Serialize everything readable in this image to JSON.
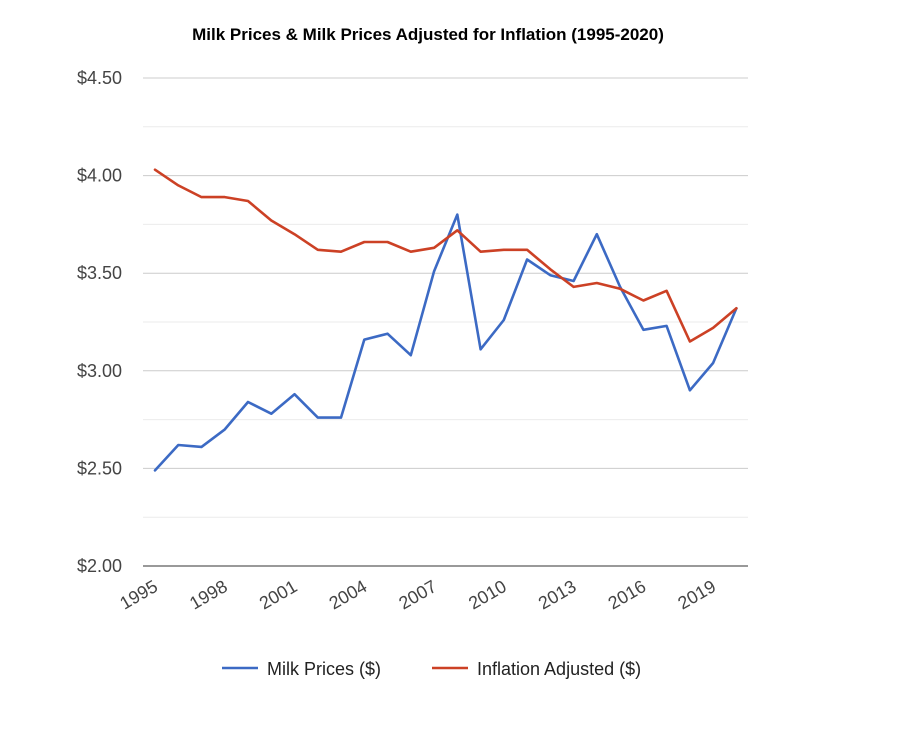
{
  "chart_data": {
    "type": "line",
    "title": "Milk Prices & Milk Prices Adjusted for Inflation (1995-2020)",
    "xlabel": "",
    "ylabel": "",
    "x": [
      1995,
      1996,
      1997,
      1998,
      1999,
      2000,
      2001,
      2002,
      2003,
      2004,
      2005,
      2006,
      2007,
      2008,
      2009,
      2010,
      2011,
      2012,
      2013,
      2014,
      2015,
      2016,
      2017,
      2018,
      2019,
      2020
    ],
    "x_tick_labels": [
      "1995",
      "1998",
      "2001",
      "2004",
      "2007",
      "2010",
      "2013",
      "2016",
      "2019"
    ],
    "x_tick_values": [
      1995,
      1998,
      2001,
      2004,
      2007,
      2010,
      2013,
      2016,
      2019
    ],
    "ylim": [
      2.0,
      4.5
    ],
    "y_tick_values": [
      2.0,
      2.5,
      3.0,
      3.5,
      4.0,
      4.5
    ],
    "y_tick_labels": [
      "$2.00",
      "$2.50",
      "$3.00",
      "$3.50",
      "$4.00",
      "$4.50"
    ],
    "y_minor_gridlines": [
      2.25,
      2.75,
      3.25,
      3.75,
      4.25
    ],
    "grid": true,
    "legend_position": "bottom",
    "series": [
      {
        "name": "Milk Prices ($)",
        "color": "#3c6ac4",
        "values": [
          2.49,
          2.62,
          2.61,
          2.7,
          2.84,
          2.78,
          2.88,
          2.76,
          2.76,
          3.16,
          3.19,
          3.08,
          3.51,
          3.8,
          3.11,
          3.26,
          3.57,
          3.49,
          3.46,
          3.7,
          3.43,
          3.21,
          3.23,
          2.9,
          3.04,
          3.32
        ]
      },
      {
        "name": "Inflation Adjusted ($)",
        "color": "#cc4125",
        "values": [
          4.03,
          3.95,
          3.89,
          3.89,
          3.87,
          3.77,
          3.7,
          3.62,
          3.61,
          3.66,
          3.66,
          3.61,
          3.63,
          3.72,
          3.61,
          3.62,
          3.62,
          3.52,
          3.43,
          3.45,
          3.42,
          3.36,
          3.41,
          3.15,
          3.22,
          3.32
        ]
      }
    ]
  }
}
